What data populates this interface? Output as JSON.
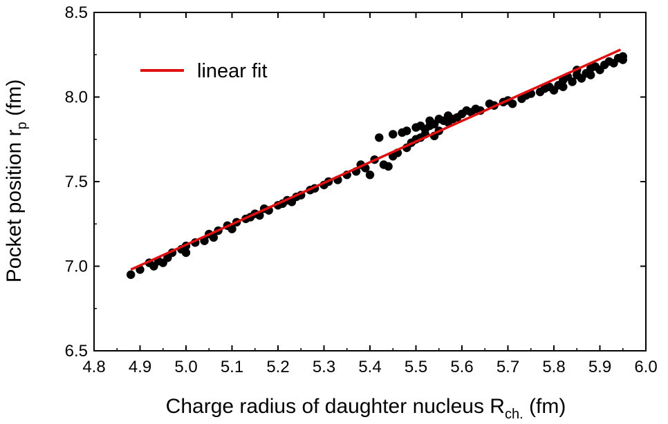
{
  "chart_data": {
    "type": "scatter",
    "title": "",
    "xlabel": {
      "main": "Charge radius of daughter nucleus R",
      "sub": "ch.",
      "unit": " (fm)"
    },
    "ylabel": {
      "main": "Pocket position r",
      "sub": "p",
      "unit": " (fm)"
    },
    "xlim": [
      4.8,
      6.0
    ],
    "ylim": [
      6.5,
      8.5
    ],
    "x_ticks": [
      "4.8",
      "4.9",
      "5.0",
      "5.1",
      "5.2",
      "5.3",
      "5.4",
      "5.5",
      "5.6",
      "5.7",
      "5.8",
      "5.9",
      "6.0"
    ],
    "y_ticks": [
      "6.5",
      "7.0",
      "7.5",
      "8.0",
      "8.5"
    ],
    "grid": false,
    "legend": {
      "position": "top-left",
      "entries": [
        {
          "label": "linear fit",
          "color": "#e01010"
        }
      ]
    },
    "series": [
      {
        "name": "data",
        "type": "scatter",
        "color": "#000000",
        "points": [
          [
            4.88,
            6.95
          ],
          [
            4.9,
            6.98
          ],
          [
            4.92,
            7.02
          ],
          [
            4.93,
            7.0
          ],
          [
            4.94,
            7.03
          ],
          [
            4.95,
            7.02
          ],
          [
            4.96,
            7.05
          ],
          [
            4.97,
            7.08
          ],
          [
            4.99,
            7.1
          ],
          [
            5.0,
            7.08
          ],
          [
            5.0,
            7.12
          ],
          [
            5.02,
            7.14
          ],
          [
            5.04,
            7.15
          ],
          [
            5.05,
            7.19
          ],
          [
            5.06,
            7.17
          ],
          [
            5.07,
            7.21
          ],
          [
            5.09,
            7.24
          ],
          [
            5.1,
            7.22
          ],
          [
            5.11,
            7.26
          ],
          [
            5.13,
            7.28
          ],
          [
            5.14,
            7.29
          ],
          [
            5.15,
            7.31
          ],
          [
            5.16,
            7.3
          ],
          [
            5.17,
            7.34
          ],
          [
            5.18,
            7.33
          ],
          [
            5.2,
            7.36
          ],
          [
            5.21,
            7.37
          ],
          [
            5.22,
            7.39
          ],
          [
            5.23,
            7.38
          ],
          [
            5.24,
            7.41
          ],
          [
            5.25,
            7.42
          ],
          [
            5.27,
            7.45
          ],
          [
            5.28,
            7.46
          ],
          [
            5.3,
            7.48
          ],
          [
            5.31,
            7.5
          ],
          [
            5.33,
            7.51
          ],
          [
            5.35,
            7.54
          ],
          [
            5.37,
            7.56
          ],
          [
            5.38,
            7.6
          ],
          [
            5.39,
            7.58
          ],
          [
            5.4,
            7.54
          ],
          [
            5.41,
            7.63
          ],
          [
            5.42,
            7.76
          ],
          [
            5.43,
            7.6
          ],
          [
            5.44,
            7.59
          ],
          [
            5.45,
            7.65
          ],
          [
            5.45,
            7.78
          ],
          [
            5.46,
            7.67
          ],
          [
            5.47,
            7.79
          ],
          [
            5.48,
            7.7
          ],
          [
            5.48,
            7.8
          ],
          [
            5.49,
            7.73
          ],
          [
            5.5,
            7.75
          ],
          [
            5.5,
            7.82
          ],
          [
            5.51,
            7.76
          ],
          [
            5.51,
            7.83
          ],
          [
            5.52,
            7.78
          ],
          [
            5.52,
            7.81
          ],
          [
            5.53,
            7.83
          ],
          [
            5.53,
            7.86
          ],
          [
            5.54,
            7.77
          ],
          [
            5.54,
            7.84
          ],
          [
            5.55,
            7.8
          ],
          [
            5.55,
            7.87
          ],
          [
            5.56,
            7.86
          ],
          [
            5.57,
            7.89
          ],
          [
            5.57,
            7.85
          ],
          [
            5.58,
            7.87
          ],
          [
            5.59,
            7.88
          ],
          [
            5.6,
            7.9
          ],
          [
            5.61,
            7.92
          ],
          [
            5.62,
            7.91
          ],
          [
            5.63,
            7.93
          ],
          [
            5.64,
            7.92
          ],
          [
            5.66,
            7.96
          ],
          [
            5.67,
            7.95
          ],
          [
            5.69,
            7.97
          ],
          [
            5.7,
            7.98
          ],
          [
            5.71,
            7.96
          ],
          [
            5.73,
            7.99
          ],
          [
            5.74,
            8.01
          ],
          [
            5.75,
            8.02
          ],
          [
            5.77,
            8.03
          ],
          [
            5.78,
            8.05
          ],
          [
            5.79,
            8.06
          ],
          [
            5.8,
            8.04
          ],
          [
            5.81,
            8.07
          ],
          [
            5.82,
            8.1
          ],
          [
            5.82,
            8.06
          ],
          [
            5.83,
            8.12
          ],
          [
            5.84,
            8.09
          ],
          [
            5.85,
            8.13
          ],
          [
            5.85,
            8.16
          ],
          [
            5.86,
            8.11
          ],
          [
            5.87,
            8.14
          ],
          [
            5.88,
            8.17
          ],
          [
            5.88,
            8.13
          ],
          [
            5.89,
            8.18
          ],
          [
            5.9,
            8.16
          ],
          [
            5.91,
            8.19
          ],
          [
            5.92,
            8.21
          ],
          [
            5.93,
            8.2
          ],
          [
            5.94,
            8.23
          ],
          [
            5.95,
            8.24
          ],
          [
            5.95,
            8.22
          ]
        ]
      },
      {
        "name": "linear fit",
        "type": "line",
        "color": "#e01010",
        "points": [
          [
            4.88,
            6.98
          ],
          [
            5.945,
            8.28
          ]
        ]
      }
    ]
  }
}
